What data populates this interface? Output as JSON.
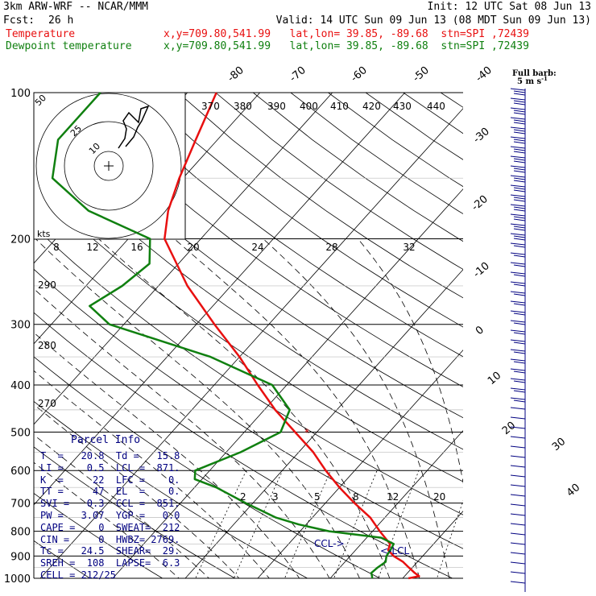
{
  "header": {
    "model": "3km ARW-WRF -- NCAR/MMM",
    "init": "Init: 12 UTC Sat 08 Jun 13",
    "fcst_label": "Fcst:",
    "fcst_value": "26 h",
    "valid": "Valid: 14 UTC Sun 09 Jun 13 (08 MDT Sun 09 Jun 13)",
    "temp_label": "Temperature",
    "dew_label": "Dewpoint temperature",
    "temp_loc": "x,y=709.80,541.99   lat,lon= 39.85, -89.68  stn=SPI ,72439",
    "dew_loc": "x,y=709.80,541.99   lat,lon= 39.85, -89.68  stn=SPI ,72439"
  },
  "colors": {
    "temp": "#e81010",
    "dew": "#108010",
    "wind": "#000080",
    "grid": "#000000",
    "info": "#000080"
  },
  "chart_data": {
    "type": "line",
    "title": "",
    "y_pressure_hPa_ticks": [
      "100",
      "200",
      "300",
      "400",
      "500",
      "600",
      "700",
      "800",
      "900",
      "1000"
    ],
    "top_temp_labels": [
      "-80",
      "-70",
      "-60",
      "-50",
      "-40"
    ],
    "right_temp_labels": [
      "-30",
      "-20",
      "-10",
      "0",
      "10",
      "20",
      "30",
      "40"
    ],
    "theta_labels": [
      "370",
      "380",
      "390",
      "400",
      "410",
      "420",
      "430",
      "440"
    ],
    "left_theta_labels": [
      "290",
      "280",
      "270"
    ],
    "mixing_ratio_labels": [
      "2",
      "3",
      "5",
      "8",
      "12",
      "20"
    ],
    "hodograph": {
      "speed_labels": [
        "8",
        "12",
        "16",
        "20",
        "24",
        "28",
        "32"
      ],
      "ring_labels": [
        "50",
        "25",
        "10"
      ],
      "unit": "kts"
    },
    "barb_legend": {
      "line1": "Full barb:",
      "line2": "5 m s",
      "exp": "-1"
    },
    "markers": {
      "lcl": "<-LCL",
      "ccl": "CCL->",
      "el_mark": "*"
    },
    "series": [
      {
        "name": "Temperature",
        "p": [
          1000,
          990,
          975,
          950,
          925,
          900,
          875,
          850,
          800,
          750,
          700,
          650,
          600,
          550,
          500,
          450,
          400,
          350,
          300,
          250,
          200,
          175,
          150,
          125,
          100
        ],
        "t": [
          20.8,
          22.0,
          21.0,
          19.5,
          18.0,
          16.0,
          14.5,
          14.0,
          11.0,
          8.0,
          4.0,
          0.0,
          -4.0,
          -8.0,
          -13.0,
          -18.5,
          -24.0,
          -30.0,
          -37.5,
          -46.0,
          -55.0,
          -58.0,
          -60.5,
          -63.0,
          -66.0
        ]
      },
      {
        "name": "Dewpoint temperature",
        "p": [
          1000,
          990,
          975,
          950,
          925,
          900,
          875,
          850,
          825,
          800,
          775,
          750,
          700,
          650,
          625,
          600,
          550,
          500,
          450,
          400,
          350,
          300,
          275,
          250,
          225,
          200,
          175,
          150,
          125,
          100
        ],
        "t": [
          15.8,
          15.5,
          15.0,
          15.2,
          15.6,
          15.0,
          14.8,
          14.5,
          12.0,
          4.0,
          -1.0,
          -5.0,
          -11.0,
          -17.0,
          -21.0,
          -22.0,
          -18.0,
          -15.0,
          -16.5,
          -22.0,
          -34.0,
          -52.0,
          -57.0,
          -55.0,
          -54.0,
          -57.0,
          -69.0,
          -78.0,
          -82.0,
          -82.0
        ]
      }
    ]
  },
  "parcel_info": {
    "title": "Parcel Info",
    "rows": [
      "T  =   20.8  Td =   15.8",
      "LI =    0.5  LCL =  871.",
      "K  =     22  LFC =    0.",
      "TT =     47  EL  =    0.",
      "SVI =   0.3  CCL =  851.",
      "PW =   3.07  YGP =   0.0",
      "CAPE =    0  SWEAT=  212",
      "CIN =     0  HWBZ= 2769.",
      "Tc =   24.5  SHEAR=  29.",
      "SREH =  108  LAPSE=  6.3",
      "CELL = 212/25"
    ]
  }
}
